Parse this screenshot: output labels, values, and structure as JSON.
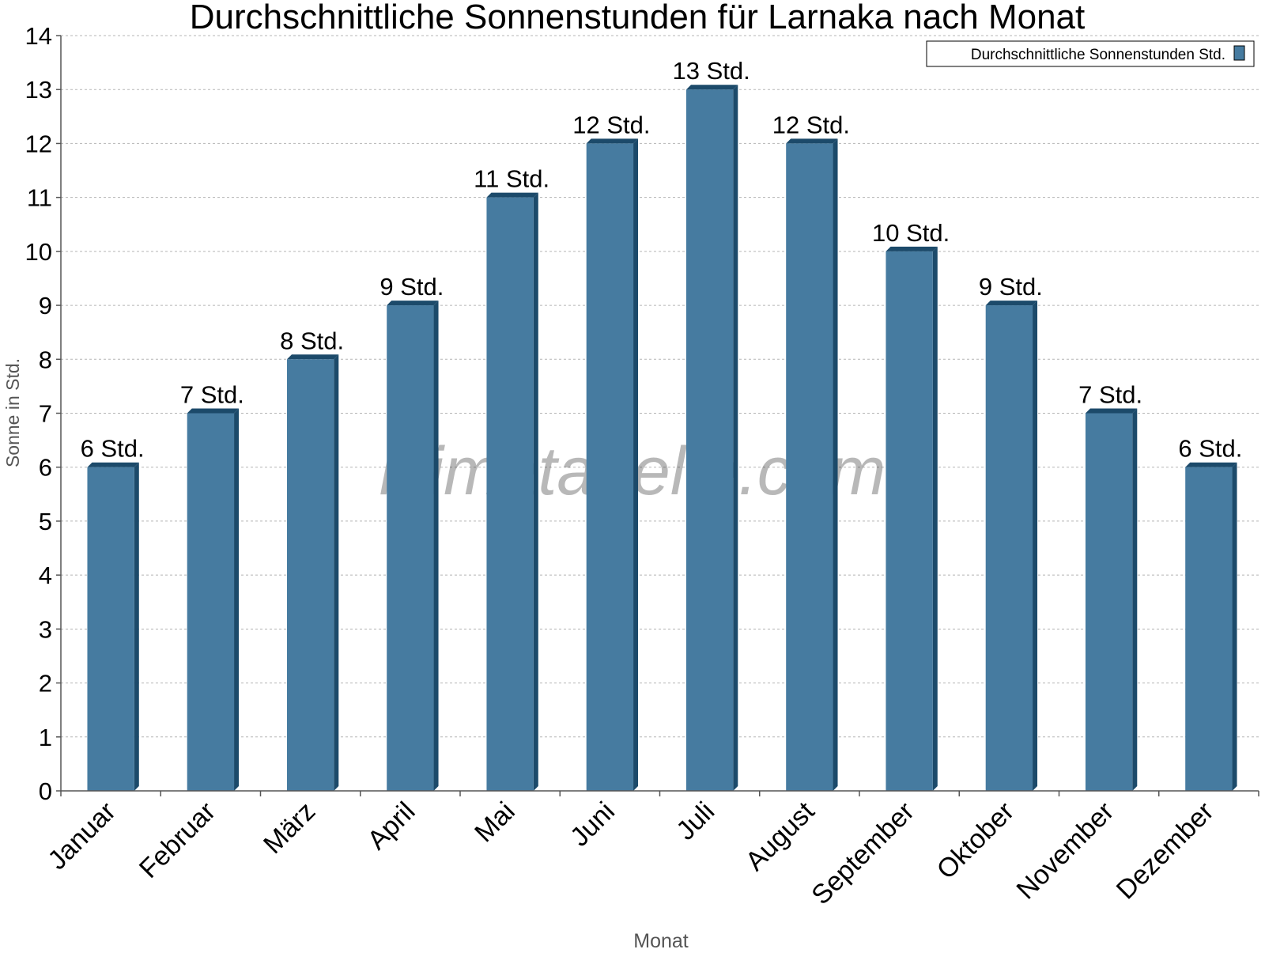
{
  "chart_data": {
    "type": "bar",
    "title": "Durchschnittliche Sonnenstunden für Larnaka nach Monat",
    "xlabel": "Monat",
    "ylabel": "Sonne in Std.",
    "categories": [
      "Januar",
      "Februar",
      "März",
      "April",
      "Mai",
      "Juni",
      "Juli",
      "August",
      "September",
      "Oktober",
      "November",
      "Dezember"
    ],
    "series": [
      {
        "name": "Durchschnittliche Sonnenstunden Std.",
        "values": [
          6,
          7,
          8,
          9,
          11,
          12,
          13,
          12,
          10,
          9,
          7,
          6
        ],
        "labels": [
          "6 Std.",
          "7 Std.",
          "8 Std.",
          "9 Std.",
          "11 Std.",
          "12 Std.",
          "13 Std.",
          "12 Std.",
          "10 Std.",
          "9 Std.",
          "7 Std.",
          "6 Std."
        ],
        "color": "#467ba0",
        "side_color": "#1c4a6a"
      }
    ],
    "ylim": [
      0,
      14
    ],
    "yticks": [
      "0",
      "1",
      "2",
      "3",
      "4",
      "5",
      "6",
      "7",
      "8",
      "9",
      "10",
      "11",
      "12",
      "13",
      "14"
    ],
    "grid": true,
    "legend_position": "top-right",
    "watermark": "klimatabelle.com"
  }
}
